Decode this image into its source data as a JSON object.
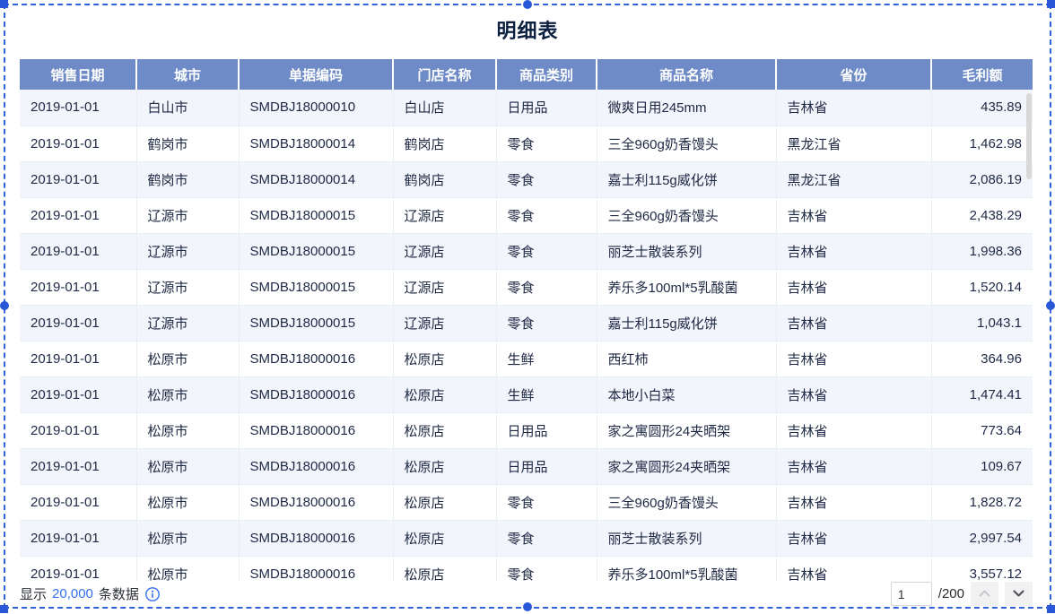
{
  "title": "明细表",
  "table": {
    "columns": [
      {
        "label": "销售日期",
        "align": "left"
      },
      {
        "label": "城市",
        "align": "left"
      },
      {
        "label": "单据编码",
        "align": "left"
      },
      {
        "label": "门店名称",
        "align": "left"
      },
      {
        "label": "商品类别",
        "align": "left"
      },
      {
        "label": "商品名称",
        "align": "left"
      },
      {
        "label": "省份",
        "align": "left"
      },
      {
        "label": "毛利额",
        "align": "right"
      }
    ],
    "rows": [
      [
        "2019-01-01",
        "白山市",
        "SMDBJ18000010",
        "白山店",
        "日用品",
        "微爽日用245mm",
        "吉林省",
        "435.89"
      ],
      [
        "2019-01-01",
        "鹤岗市",
        "SMDBJ18000014",
        "鹤岗店",
        "零食",
        "三全960g奶香馒头",
        "黑龙江省",
        "1,462.98"
      ],
      [
        "2019-01-01",
        "鹤岗市",
        "SMDBJ18000014",
        "鹤岗店",
        "零食",
        "嘉士利115g威化饼",
        "黑龙江省",
        "2,086.19"
      ],
      [
        "2019-01-01",
        "辽源市",
        "SMDBJ18000015",
        "辽源店",
        "零食",
        "三全960g奶香馒头",
        "吉林省",
        "2,438.29"
      ],
      [
        "2019-01-01",
        "辽源市",
        "SMDBJ18000015",
        "辽源店",
        "零食",
        "丽芝士散装系列",
        "吉林省",
        "1,998.36"
      ],
      [
        "2019-01-01",
        "辽源市",
        "SMDBJ18000015",
        "辽源店",
        "零食",
        "养乐多100ml*5乳酸菌",
        "吉林省",
        "1,520.14"
      ],
      [
        "2019-01-01",
        "辽源市",
        "SMDBJ18000015",
        "辽源店",
        "零食",
        "嘉士利115g威化饼",
        "吉林省",
        "1,043.1"
      ],
      [
        "2019-01-01",
        "松原市",
        "SMDBJ18000016",
        "松原店",
        "生鲜",
        "西红柿",
        "吉林省",
        "364.96"
      ],
      [
        "2019-01-01",
        "松原市",
        "SMDBJ18000016",
        "松原店",
        "生鲜",
        "本地小白菜",
        "吉林省",
        "1,474.41"
      ],
      [
        "2019-01-01",
        "松原市",
        "SMDBJ18000016",
        "松原店",
        "日用品",
        "家之寓圆形24夹晒架",
        "吉林省",
        "773.64"
      ],
      [
        "2019-01-01",
        "松原市",
        "SMDBJ18000016",
        "松原店",
        "日用品",
        "家之寓圆形24夹晒架",
        "吉林省",
        "109.67"
      ],
      [
        "2019-01-01",
        "松原市",
        "SMDBJ18000016",
        "松原店",
        "零食",
        "三全960g奶香馒头",
        "吉林省",
        "1,828.72"
      ],
      [
        "2019-01-01",
        "松原市",
        "SMDBJ18000016",
        "松原店",
        "零食",
        "丽芝士散装系列",
        "吉林省",
        "2,997.54"
      ],
      [
        "2019-01-01",
        "松原市",
        "SMDBJ18000016",
        "松原店",
        "零食",
        "养乐多100ml*5乳酸菌",
        "吉林省",
        "3,557.12"
      ]
    ]
  },
  "footer": {
    "show_prefix": "显示",
    "record_count": "20,000",
    "show_suffix": "条数据",
    "page_current": "1",
    "page_total": "/200"
  },
  "icons": {
    "info": "info-icon",
    "page_up": "chevron-up-icon",
    "page_down": "chevron-down-icon"
  },
  "colors": {
    "header_bg": "#6e8bc7",
    "stripe_row": "#f2f5fb",
    "selection_border": "#2f62d8",
    "accent_link": "#3370f0",
    "title_text": "#0b1f3f"
  }
}
